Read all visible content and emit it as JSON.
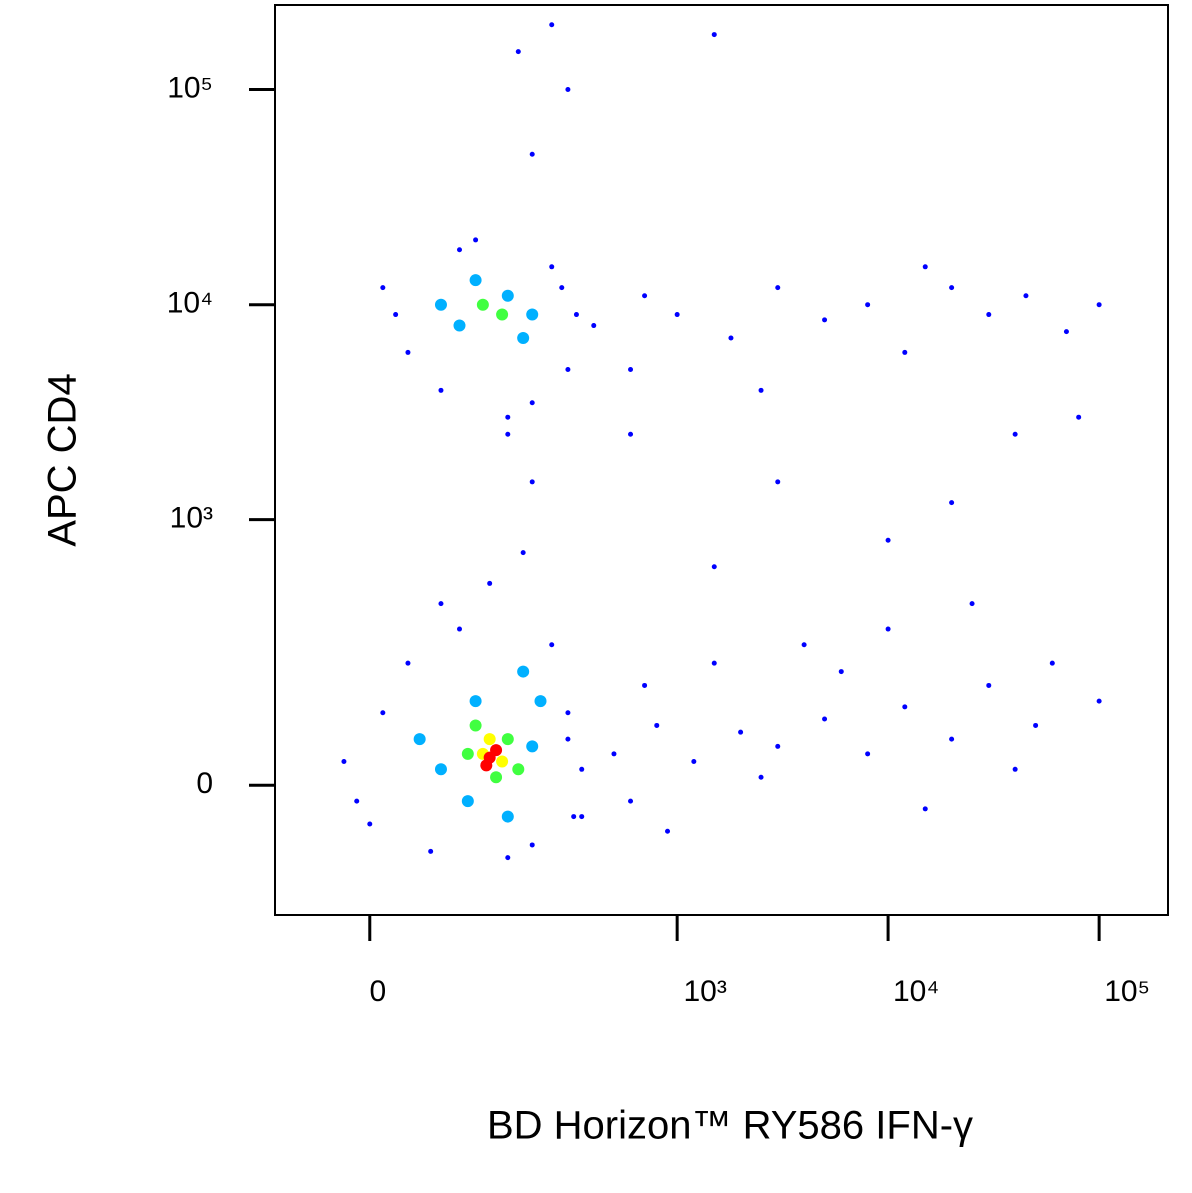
{
  "chart_data": {
    "type": "scatter",
    "x_label": "BD Horizon™ RY586  IFN-γ",
    "y_label": "APC  CD4",
    "xscale": "biexponential",
    "yscale": "biexponential",
    "xlim": [
      -86,
      212000
    ],
    "ylim": [
      -220,
      247000
    ],
    "xticks": [
      0,
      {
        "value": 1000,
        "label": "10³"
      },
      {
        "value": 10000,
        "label": "10⁴"
      },
      {
        "value": 100000,
        "label": "10⁵"
      }
    ],
    "yticks": [
      0,
      {
        "value": 1000,
        "label": "10³"
      },
      {
        "value": 10000,
        "label": "10⁴"
      },
      {
        "value": 100000,
        "label": "10⁵"
      }
    ],
    "series": [
      {
        "color": "#0000ff",
        "x": [
          300,
          500,
          800,
          1200,
          2000,
          3000,
          5000,
          8000,
          12000,
          20000,
          30000,
          50000,
          700,
          1500,
          4000,
          10000,
          25000,
          60000,
          600,
          2500,
          15000,
          40000,
          900,
          350,
          6000,
          100000,
          400,
          700,
          1000,
          1800,
          3000,
          5000,
          8000,
          12000,
          20000,
          30000,
          45000,
          70000,
          100000,
          600,
          2500,
          15000,
          3000,
          10000,
          40000,
          1500,
          20000,
          80000,
          600,
          200,
          150,
          170,
          250,
          200,
          1500,
          300,
          -20,
          0,
          30,
          50,
          80,
          200,
          300,
          350,
          250,
          10,
          150,
          -10,
          320,
          60,
          120,
          180,
          10,
          30,
          80,
          250,
          330,
          300,
          60,
          150,
          200,
          20,
          100,
          280
        ],
        "y": [
          60,
          40,
          80,
          30,
          70,
          50,
          90,
          40,
          110,
          60,
          150,
          80,
          150,
          200,
          250,
          300,
          400,
          200,
          -20,
          10,
          -30,
          20,
          -60,
          -40,
          180,
          120,
          8000,
          11000,
          9000,
          7000,
          12000,
          8500,
          10000,
          6000,
          12000,
          9000,
          11000,
          7500,
          10000,
          5000,
          4000,
          15000,
          1500,
          800,
          2500,
          600,
          1200,
          3000,
          2500,
          1500,
          3000,
          150000,
          200000,
          50000,
          180000,
          100000,
          30,
          -50,
          200,
          -90,
          300,
          -80,
          100,
          20,
          250,
          100,
          -100,
          -20,
          -40,
          400,
          500,
          700,
          12000,
          6000,
          18000,
          15000,
          9000,
          5000,
          4000,
          2500,
          3500,
          9000,
          20000,
          12000
        ]
      },
      {
        "color": "#00b0ff",
        "x": [
          60,
          100,
          200,
          150,
          90,
          220,
          40,
          180,
          80,
          150,
          100,
          200,
          60,
          180
        ],
        "y": [
          20,
          120,
          50,
          -40,
          -20,
          120,
          60,
          180,
          8000,
          11000,
          13000,
          9000,
          10000,
          7000
        ]
      },
      {
        "color": "#40ff40",
        "x": [
          90,
          150,
          130,
          100,
          170,
          110,
          140
        ],
        "y": [
          40,
          60,
          10,
          80,
          20,
          10000,
          9000
        ]
      },
      {
        "color": "#ffff00",
        "x": [
          110,
          140,
          120
        ],
        "y": [
          40,
          30,
          60
        ]
      },
      {
        "color": "#ff0000",
        "x": [
          120,
          130,
          115
        ],
        "y": [
          35,
          45,
          25
        ]
      }
    ]
  }
}
